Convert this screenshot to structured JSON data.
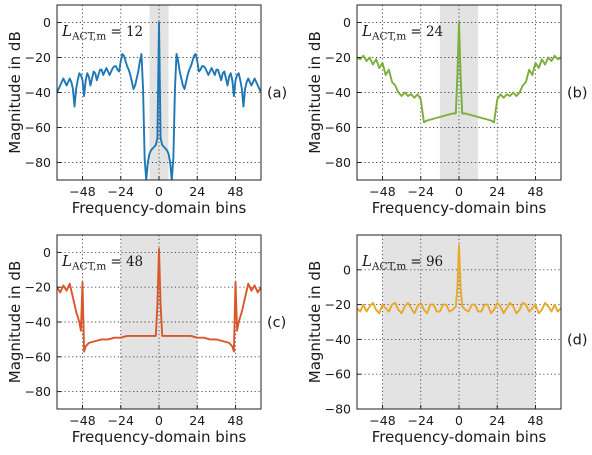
{
  "figure": {
    "panel_count": 4,
    "band_color": "#e3e3e3"
  },
  "chart_data": [
    {
      "type": "line",
      "panel_label": "(a)",
      "param": {
        "symbol": "L",
        "sub": "ACT,m",
        "value": "= 12"
      },
      "color": "#1f77b4",
      "xlabel": "Frequency-domain bins",
      "ylabel": "Magnitude in dB",
      "xlim": [
        -64,
        64
      ],
      "ylim": [
        -90,
        10
      ],
      "xticks": [
        -48,
        -24,
        0,
        24,
        48
      ],
      "xtick_labels": [
        "−48",
        "−24",
        "0",
        "24",
        "48"
      ],
      "yticks": [
        -80,
        -60,
        -40,
        -20,
        0
      ],
      "ytick_labels": [
        "−80",
        "−60",
        "−40",
        "−20",
        "0"
      ],
      "shaded_band": [
        -6,
        6
      ],
      "grid": true,
      "series": [
        {
          "x": [
            -64,
            -62,
            -61,
            -60,
            -59,
            -58,
            -57,
            -56,
            -55,
            -54,
            -53,
            -52,
            -51,
            -50,
            -49,
            -48,
            -47,
            -46,
            -45,
            -44,
            -43,
            -42,
            -41,
            -40,
            -39,
            -38,
            -37,
            -36,
            -35,
            -34,
            -33,
            -32,
            -31,
            -30,
            -29,
            -28,
            -27,
            -26,
            -25,
            -24,
            -23,
            -22,
            -21,
            -20,
            -19,
            -18,
            -17,
            -16,
            -15,
            -14,
            -13,
            -12,
            -11,
            -10,
            -9,
            -8,
            -7,
            -6,
            -5,
            -4,
            -3,
            -2,
            -1,
            0,
            1,
            2,
            3,
            4,
            5,
            6,
            7,
            8,
            9,
            10,
            11,
            12,
            13,
            14,
            15,
            16,
            17,
            18,
            19,
            20,
            21,
            22,
            23,
            24,
            25,
            26,
            27,
            28,
            29,
            30,
            31,
            32,
            33,
            34,
            35,
            36,
            37,
            38,
            39,
            40,
            41,
            42,
            43,
            44,
            45,
            46,
            47,
            48,
            49,
            50,
            51,
            52,
            53,
            54,
            55,
            56,
            57,
            58,
            59,
            60,
            61,
            62,
            64
          ],
          "y": [
            -40,
            -36,
            -34,
            -32,
            -34,
            -36,
            -34,
            -32,
            -34,
            -38,
            -48,
            -38,
            -33,
            -29,
            -30,
            -33,
            -42,
            -33,
            -29,
            -31,
            -36,
            -32,
            -28,
            -29,
            -33,
            -30,
            -27,
            -27,
            -30,
            -28,
            -26,
            -28,
            -30,
            -28,
            -26,
            -25,
            -25,
            -27,
            -28,
            -22,
            -18,
            -19,
            -22,
            -25,
            -27,
            -30,
            -34,
            -38,
            -36,
            -32,
            -28,
            -22,
            -18,
            -38,
            -78,
            -90,
            -80,
            -75,
            -73,
            -72,
            -71,
            -70,
            -66,
            0,
            -66,
            -70,
            -71,
            -72,
            -73,
            -75,
            -80,
            -90,
            -78,
            -38,
            -18,
            -22,
            -28,
            -32,
            -36,
            -38,
            -34,
            -30,
            -27,
            -25,
            -22,
            -19,
            -18,
            -22,
            -28,
            -27,
            -25,
            -25,
            -26,
            -28,
            -30,
            -28,
            -26,
            -28,
            -30,
            -27,
            -27,
            -30,
            -33,
            -29,
            -28,
            -32,
            -36,
            -31,
            -29,
            -33,
            -42,
            -33,
            -30,
            -29,
            -33,
            -38,
            -48,
            -38,
            -34,
            -32,
            -34,
            -36,
            -34,
            -32,
            -34,
            -36,
            -40
          ],
          "dotted_x": [
            -2,
            2
          ],
          "dotted_y": [
            -40,
            -40
          ]
        }
      ]
    },
    {
      "type": "line",
      "panel_label": "(b)",
      "param": {
        "symbol": "L",
        "sub": "ACT,m",
        "value": "= 24"
      },
      "color": "#7aaf3a",
      "xlabel": "Frequency-domain bins",
      "ylabel": "Magnitude in dB",
      "xlim": [
        -64,
        64
      ],
      "ylim": [
        -90,
        10
      ],
      "xticks": [
        -48,
        -24,
        0,
        24,
        48
      ],
      "xtick_labels": [
        "−48",
        "−24",
        "0",
        "24",
        "48"
      ],
      "yticks": [
        -80,
        -60,
        -40,
        -20,
        0
      ],
      "ytick_labels": [
        "−80",
        "−60",
        "−40",
        "−20",
        "0"
      ],
      "shaded_band": [
        -12,
        12
      ],
      "grid": true,
      "series": [
        {
          "x": [
            -64,
            -62,
            -60,
            -58,
            -56,
            -54,
            -52,
            -50,
            -48,
            -46,
            -44,
            -42,
            -40,
            -38,
            -36,
            -34,
            -32,
            -30,
            -28,
            -26,
            -24,
            -22,
            -20,
            -16,
            -12,
            -8,
            -4,
            -2,
            -1,
            0,
            1,
            2,
            4,
            8,
            12,
            16,
            20,
            22,
            24,
            26,
            28,
            30,
            32,
            34,
            36,
            38,
            40,
            42,
            44,
            46,
            48,
            50,
            52,
            54,
            56,
            58,
            60,
            62,
            64
          ],
          "y": [
            -20,
            -21,
            -19,
            -22,
            -20,
            -24,
            -21,
            -26,
            -23,
            -30,
            -27,
            -34,
            -36,
            -40,
            -42,
            -40,
            -42,
            -41,
            -43,
            -41,
            -44,
            -57,
            -56,
            -55,
            -54,
            -53,
            -52,
            -52,
            -30,
            0,
            -30,
            -52,
            -52,
            -53,
            -54,
            -55,
            -56,
            -57,
            -44,
            -41,
            -43,
            -41,
            -42,
            -40,
            -42,
            -40,
            -36,
            -34,
            -27,
            -30,
            -23,
            -26,
            -21,
            -24,
            -20,
            -22,
            -19,
            -21,
            -20
          ]
        }
      ]
    },
    {
      "type": "line",
      "panel_label": "(c)",
      "param": {
        "symbol": "L",
        "sub": "ACT,m",
        "value": "= 48"
      },
      "color": "#d9572b",
      "xlabel": "Frequency-domain bins",
      "ylabel": "Magnitude in dB",
      "xlim": [
        -64,
        64
      ],
      "ylim": [
        -90,
        10
      ],
      "xticks": [
        -48,
        -24,
        0,
        24,
        48
      ],
      "xtick_labels": [
        "−48",
        "−24",
        "0",
        "24",
        "48"
      ],
      "yticks": [
        -80,
        -60,
        -40,
        -20,
        0
      ],
      "ytick_labels": [
        "−80",
        "−60",
        "−40",
        "−20",
        "0"
      ],
      "shaded_band": [
        -24,
        24
      ],
      "grid": true,
      "series": [
        {
          "x": [
            -64,
            -62,
            -60,
            -58,
            -56,
            -54,
            -52,
            -50,
            -49,
            -48,
            -47,
            -46,
            -44,
            -40,
            -36,
            -32,
            -28,
            -24,
            -20,
            -16,
            -12,
            -8,
            -4,
            -2,
            -1,
            0,
            1,
            2,
            4,
            8,
            12,
            16,
            20,
            24,
            28,
            32,
            36,
            40,
            44,
            46,
            47,
            48,
            49,
            50,
            52,
            54,
            56,
            58,
            60,
            62,
            64
          ],
          "y": [
            -20,
            -23,
            -19,
            -22,
            -18,
            -26,
            -34,
            -40,
            -45,
            -17,
            -57,
            -54,
            -52,
            -51,
            -50,
            -50,
            -49,
            -49,
            -48,
            -48,
            -48,
            -48,
            -48,
            -48,
            -30,
            2,
            -30,
            -48,
            -48,
            -48,
            -48,
            -48,
            -48,
            -49,
            -49,
            -50,
            -50,
            -51,
            -52,
            -54,
            -57,
            -17,
            -45,
            -40,
            -34,
            -26,
            -18,
            -22,
            -19,
            -23,
            -20
          ]
        }
      ]
    },
    {
      "type": "line",
      "panel_label": "(d)",
      "param": {
        "symbol": "L",
        "sub": "ACT,m",
        "value": "= 96"
      },
      "color": "#e8a92a",
      "xlabel": "Frequency-domain bins",
      "ylabel": "Magnitude in dB",
      "xlim": [
        -64,
        64
      ],
      "ylim": [
        -80,
        20
      ],
      "xticks": [
        -48,
        -24,
        0,
        24,
        48
      ],
      "xtick_labels": [
        "−48",
        "−24",
        "0",
        "24",
        "48"
      ],
      "yticks": [
        -80,
        -60,
        -40,
        -20,
        0
      ],
      "ytick_labels": [
        "−80",
        "−60",
        "−40",
        "−20",
        "0"
      ],
      "shaded_band": [
        -48,
        48
      ],
      "grid": true,
      "series": [
        {
          "x": [
            -64,
            -62,
            -60,
            -58,
            -56,
            -54,
            -52,
            -50,
            -48,
            -46,
            -44,
            -42,
            -40,
            -38,
            -36,
            -34,
            -32,
            -30,
            -28,
            -26,
            -24,
            -22,
            -20,
            -18,
            -16,
            -14,
            -12,
            -10,
            -8,
            -6,
            -4,
            -2,
            -1,
            0,
            1,
            2,
            4,
            6,
            8,
            10,
            12,
            14,
            16,
            18,
            20,
            22,
            24,
            26,
            28,
            30,
            32,
            34,
            36,
            38,
            40,
            42,
            44,
            46,
            48,
            50,
            52,
            54,
            56,
            58,
            60,
            62,
            64
          ],
          "y": [
            -22,
            -24,
            -20,
            -24,
            -21,
            -19,
            -23,
            -25,
            -20,
            -22,
            -24,
            -20,
            -19,
            -23,
            -25,
            -21,
            -19,
            -22,
            -25,
            -21,
            -19,
            -23,
            -25,
            -20,
            -20,
            -24,
            -24,
            -20,
            -20,
            -24,
            -23,
            -21,
            -10,
            14,
            -10,
            -21,
            -23,
            -24,
            -20,
            -20,
            -24,
            -24,
            -20,
            -20,
            -25,
            -23,
            -19,
            -21,
            -25,
            -22,
            -19,
            -21,
            -25,
            -23,
            -19,
            -20,
            -24,
            -22,
            -20,
            -25,
            -23,
            -19,
            -21,
            -24,
            -20,
            -24,
            -22
          ]
        }
      ]
    }
  ]
}
